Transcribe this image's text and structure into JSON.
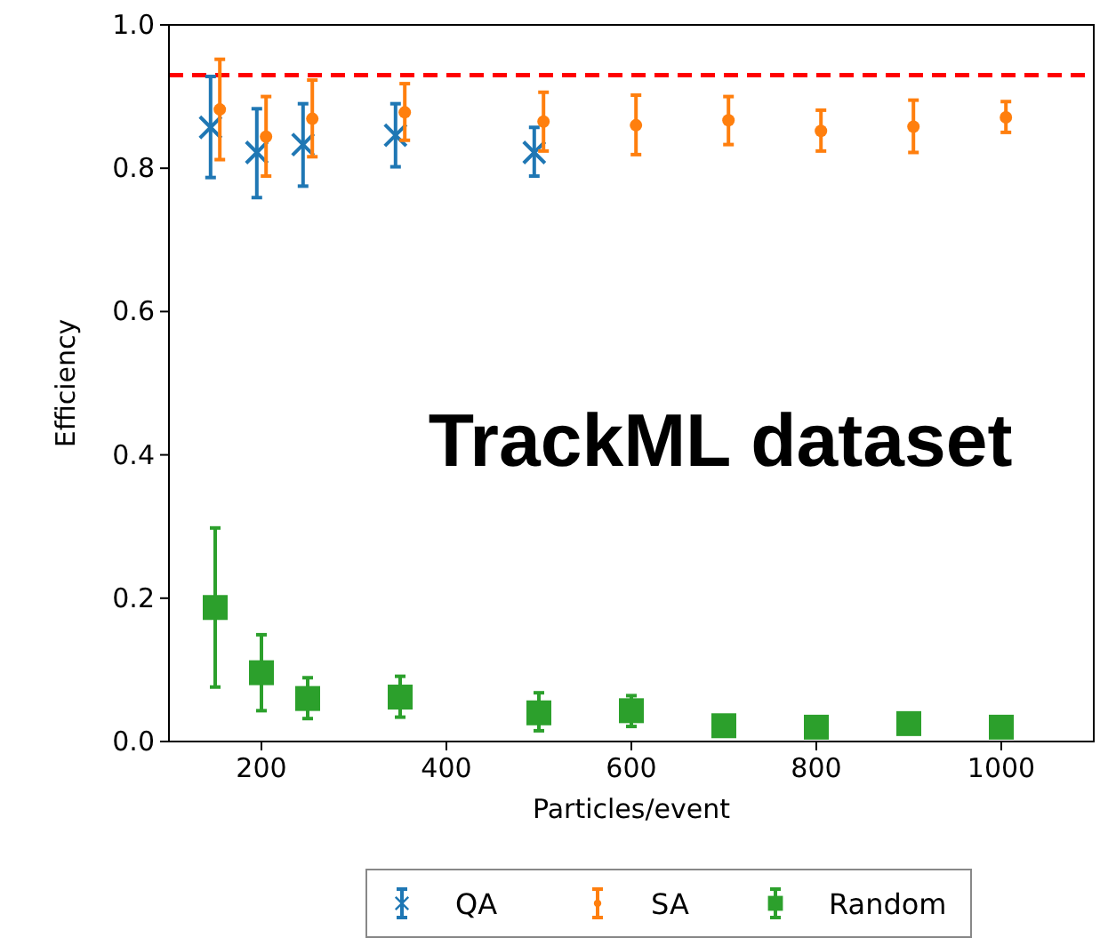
{
  "chart_data": {
    "type": "scatter",
    "xlabel": "Particles/event",
    "ylabel": "Efficiency",
    "xlim": [
      100,
      1100
    ],
    "ylim": [
      0,
      1
    ],
    "xticks": [
      200,
      400,
      600,
      800,
      1000
    ],
    "yticks": [
      {
        "value": 0,
        "label": "0.0"
      },
      0.2,
      0.4,
      0.6,
      0.8,
      {
        "value": 1,
        "label": "1.0"
      }
    ],
    "legend": "bottom",
    "grid": false,
    "series": [
      {
        "name": "QA",
        "color": "#1f77b4",
        "marker": "cross",
        "x": [
          145,
          195,
          245,
          345,
          495
        ],
        "values": [
          0.857,
          0.822,
          0.833,
          0.846,
          0.822
        ],
        "errors": [
          [
            0.787,
            0.928
          ],
          [
            0.759,
            0.883
          ],
          [
            0.775,
            0.89
          ],
          [
            0.802,
            0.89
          ],
          [
            0.789,
            0.857
          ]
        ]
      },
      {
        "name": "SA",
        "color": "#ff7f0e",
        "marker": "circle",
        "x": [
          155,
          205,
          255,
          355,
          505,
          605,
          705,
          805,
          905,
          1005
        ],
        "values": [
          0.882,
          0.844,
          0.869,
          0.878,
          0.865,
          0.86,
          0.867,
          0.852,
          0.858,
          0.871
        ],
        "errors": [
          [
            0.812,
            0.952
          ],
          [
            0.789,
            0.9
          ],
          [
            0.816,
            0.923
          ],
          [
            0.839,
            0.918
          ],
          [
            0.824,
            0.906
          ],
          [
            0.819,
            0.902
          ],
          [
            0.833,
            0.9
          ],
          [
            0.824,
            0.881
          ],
          [
            0.822,
            0.895
          ],
          [
            0.85,
            0.893
          ]
        ]
      },
      {
        "name": "Random",
        "color": "#2ca02c",
        "marker": "square",
        "x": [
          150,
          200,
          250,
          350,
          500,
          600,
          700,
          800,
          900,
          1000
        ],
        "values": [
          0.187,
          0.096,
          0.06,
          0.062,
          0.04,
          0.043,
          0.022,
          0.02,
          0.025,
          0.02
        ],
        "errors": [
          [
            0.076,
            0.298
          ],
          [
            0.043,
            0.149
          ],
          [
            0.032,
            0.089
          ],
          [
            0.034,
            0.091
          ],
          [
            0.015,
            0.068
          ],
          [
            0.021,
            0.064
          ],
          null,
          null,
          null,
          null
        ]
      }
    ],
    "ref_lines": [
      {
        "axis": "y",
        "value": 0.93,
        "color": "#ff0000",
        "line_style": "dashed"
      }
    ],
    "annotations": [
      "TrackML dataset"
    ]
  }
}
